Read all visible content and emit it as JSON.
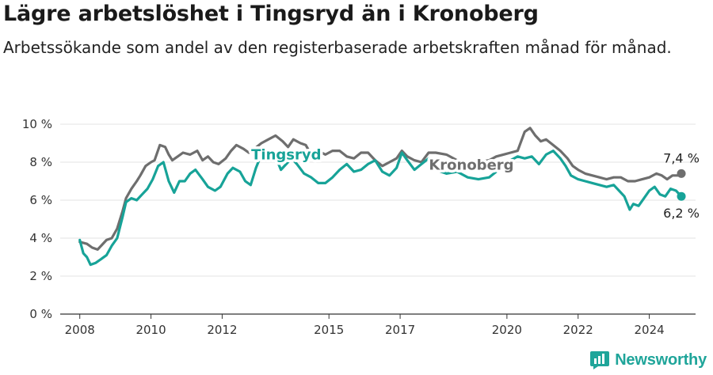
{
  "title": "Lägre arbetslöshet i Tingsryd än i Kronoberg",
  "subtitle": "Arbetssökande som andel av den registerbaserade arbetskraften månad för månad.",
  "brand": {
    "name": "Newsworthy",
    "icon": "newsworthy-logo-icon"
  },
  "colors": {
    "tingsryd": "#17a398",
    "kronoberg": "#6e6e6e",
    "grid": "#e3e3e3",
    "axis": "#333333"
  },
  "chart_data": {
    "type": "line",
    "title": "Lägre arbetslöshet i Tingsryd än i Kronoberg",
    "x_ticks": [
      "2008",
      "2010",
      "2012",
      "2015",
      "2017",
      "2020",
      "2022",
      "2024"
    ],
    "y_ticks": [
      "0 %",
      "2 %",
      "4 %",
      "6 %",
      "8 %",
      "10 %"
    ],
    "ylim": [
      0,
      10
    ],
    "xlim": [
      2007.45,
      2025.3
    ],
    "grid": true,
    "series": [
      {
        "name": "Kronoberg",
        "end_label": "7,4 %",
        "points": [
          [
            2008.0,
            3.8
          ],
          [
            2008.2,
            3.7
          ],
          [
            2008.35,
            3.5
          ],
          [
            2008.5,
            3.4
          ],
          [
            2008.6,
            3.6
          ],
          [
            2008.75,
            3.9
          ],
          [
            2008.9,
            4.0
          ],
          [
            2009.05,
            4.5
          ],
          [
            2009.2,
            5.4
          ],
          [
            2009.3,
            6.1
          ],
          [
            2009.45,
            6.6
          ],
          [
            2009.6,
            7.0
          ],
          [
            2009.7,
            7.3
          ],
          [
            2009.85,
            7.8
          ],
          [
            2010.0,
            8.0
          ],
          [
            2010.1,
            8.1
          ],
          [
            2010.25,
            8.9
          ],
          [
            2010.4,
            8.8
          ],
          [
            2010.5,
            8.4
          ],
          [
            2010.6,
            8.1
          ],
          [
            2010.75,
            8.3
          ],
          [
            2010.9,
            8.5
          ],
          [
            2011.1,
            8.4
          ],
          [
            2011.3,
            8.6
          ],
          [
            2011.45,
            8.1
          ],
          [
            2011.6,
            8.3
          ],
          [
            2011.75,
            8.0
          ],
          [
            2011.9,
            7.9
          ],
          [
            2012.1,
            8.2
          ],
          [
            2012.25,
            8.6
          ],
          [
            2012.4,
            8.9
          ],
          [
            2012.6,
            8.7
          ],
          [
            2012.75,
            8.5
          ],
          [
            2012.9,
            8.7
          ],
          [
            2013.1,
            9.0
          ],
          [
            2013.3,
            9.2
          ],
          [
            2013.5,
            9.4
          ],
          [
            2013.7,
            9.1
          ],
          [
            2013.85,
            8.8
          ],
          [
            2014.0,
            9.2
          ],
          [
            2014.2,
            9.0
          ],
          [
            2014.35,
            8.9
          ],
          [
            2014.5,
            8.4
          ],
          [
            2014.7,
            8.6
          ],
          [
            2014.9,
            8.4
          ],
          [
            2015.1,
            8.6
          ],
          [
            2015.3,
            8.6
          ],
          [
            2015.5,
            8.3
          ],
          [
            2015.7,
            8.2
          ],
          [
            2015.9,
            8.5
          ],
          [
            2016.1,
            8.5
          ],
          [
            2016.3,
            8.1
          ],
          [
            2016.5,
            7.8
          ],
          [
            2016.7,
            8.0
          ],
          [
            2016.9,
            8.2
          ],
          [
            2017.05,
            8.6
          ],
          [
            2017.2,
            8.3
          ],
          [
            2017.4,
            8.1
          ],
          [
            2017.6,
            8.0
          ],
          [
            2017.8,
            8.5
          ],
          [
            2018.0,
            8.5
          ],
          [
            2018.3,
            8.4
          ],
          [
            2018.6,
            8.1
          ],
          [
            2018.9,
            8.0
          ],
          [
            2019.2,
            8.0
          ],
          [
            2019.5,
            8.1
          ],
          [
            2019.7,
            8.3
          ],
          [
            2019.9,
            8.4
          ],
          [
            2020.1,
            8.5
          ],
          [
            2020.3,
            8.6
          ],
          [
            2020.5,
            9.6
          ],
          [
            2020.65,
            9.8
          ],
          [
            2020.8,
            9.4
          ],
          [
            2020.95,
            9.1
          ],
          [
            2021.1,
            9.2
          ],
          [
            2021.3,
            8.9
          ],
          [
            2021.5,
            8.6
          ],
          [
            2021.7,
            8.2
          ],
          [
            2021.85,
            7.8
          ],
          [
            2022.0,
            7.6
          ],
          [
            2022.2,
            7.4
          ],
          [
            2022.4,
            7.3
          ],
          [
            2022.6,
            7.2
          ],
          [
            2022.8,
            7.1
          ],
          [
            2023.0,
            7.2
          ],
          [
            2023.2,
            7.2
          ],
          [
            2023.4,
            7.0
          ],
          [
            2023.6,
            7.0
          ],
          [
            2023.8,
            7.1
          ],
          [
            2024.0,
            7.2
          ],
          [
            2024.2,
            7.4
          ],
          [
            2024.35,
            7.3
          ],
          [
            2024.5,
            7.1
          ],
          [
            2024.65,
            7.3
          ],
          [
            2024.8,
            7.3
          ],
          [
            2024.9,
            7.4
          ]
        ]
      },
      {
        "name": "Tingsryd",
        "end_label": "6,2 %",
        "points": [
          [
            2008.0,
            3.9
          ],
          [
            2008.1,
            3.2
          ],
          [
            2008.2,
            3.0
          ],
          [
            2008.3,
            2.6
          ],
          [
            2008.45,
            2.7
          ],
          [
            2008.6,
            2.9
          ],
          [
            2008.75,
            3.1
          ],
          [
            2008.9,
            3.6
          ],
          [
            2009.05,
            4.0
          ],
          [
            2009.2,
            5.1
          ],
          [
            2009.3,
            5.9
          ],
          [
            2009.45,
            6.1
          ],
          [
            2009.6,
            6.0
          ],
          [
            2009.75,
            6.3
          ],
          [
            2009.9,
            6.6
          ],
          [
            2010.05,
            7.1
          ],
          [
            2010.2,
            7.8
          ],
          [
            2010.35,
            8.0
          ],
          [
            2010.5,
            7.0
          ],
          [
            2010.65,
            6.4
          ],
          [
            2010.8,
            7.0
          ],
          [
            2010.95,
            7.0
          ],
          [
            2011.1,
            7.4
          ],
          [
            2011.25,
            7.6
          ],
          [
            2011.45,
            7.1
          ],
          [
            2011.6,
            6.7
          ],
          [
            2011.8,
            6.5
          ],
          [
            2011.95,
            6.7
          ],
          [
            2012.15,
            7.4
          ],
          [
            2012.3,
            7.7
          ],
          [
            2012.5,
            7.5
          ],
          [
            2012.65,
            7.0
          ],
          [
            2012.8,
            6.8
          ],
          [
            2012.95,
            7.7
          ],
          [
            2013.1,
            8.4
          ],
          [
            2013.3,
            8.6
          ],
          [
            2013.5,
            8.3
          ],
          [
            2013.65,
            7.6
          ],
          [
            2013.8,
            7.9
          ],
          [
            2013.95,
            8.2
          ],
          [
            2014.1,
            7.9
          ],
          [
            2014.3,
            7.4
          ],
          [
            2014.5,
            7.2
          ],
          [
            2014.7,
            6.9
          ],
          [
            2014.9,
            6.9
          ],
          [
            2015.1,
            7.2
          ],
          [
            2015.3,
            7.6
          ],
          [
            2015.5,
            7.9
          ],
          [
            2015.7,
            7.5
          ],
          [
            2015.9,
            7.6
          ],
          [
            2016.1,
            7.9
          ],
          [
            2016.3,
            8.1
          ],
          [
            2016.5,
            7.5
          ],
          [
            2016.7,
            7.3
          ],
          [
            2016.9,
            7.7
          ],
          [
            2017.05,
            8.5
          ],
          [
            2017.2,
            8.1
          ],
          [
            2017.4,
            7.6
          ],
          [
            2017.6,
            7.9
          ],
          [
            2017.8,
            8.2
          ],
          [
            2018.0,
            7.6
          ],
          [
            2018.3,
            7.4
          ],
          [
            2018.6,
            7.5
          ],
          [
            2018.9,
            7.2
          ],
          [
            2019.2,
            7.1
          ],
          [
            2019.5,
            7.2
          ],
          [
            2019.7,
            7.5
          ],
          [
            2019.9,
            7.8
          ],
          [
            2020.1,
            8.1
          ],
          [
            2020.3,
            8.3
          ],
          [
            2020.5,
            8.2
          ],
          [
            2020.7,
            8.3
          ],
          [
            2020.9,
            7.9
          ],
          [
            2021.1,
            8.4
          ],
          [
            2021.3,
            8.6
          ],
          [
            2021.5,
            8.2
          ],
          [
            2021.65,
            7.8
          ],
          [
            2021.8,
            7.3
          ],
          [
            2022.0,
            7.1
          ],
          [
            2022.2,
            7.0
          ],
          [
            2022.4,
            6.9
          ],
          [
            2022.6,
            6.8
          ],
          [
            2022.8,
            6.7
          ],
          [
            2023.0,
            6.8
          ],
          [
            2023.15,
            6.5
          ],
          [
            2023.3,
            6.2
          ],
          [
            2023.45,
            5.5
          ],
          [
            2023.55,
            5.8
          ],
          [
            2023.7,
            5.7
          ],
          [
            2023.85,
            6.1
          ],
          [
            2024.0,
            6.5
          ],
          [
            2024.15,
            6.7
          ],
          [
            2024.3,
            6.3
          ],
          [
            2024.45,
            6.2
          ],
          [
            2024.6,
            6.6
          ],
          [
            2024.75,
            6.5
          ],
          [
            2024.9,
            6.2
          ]
        ]
      }
    ],
    "annotations": [
      {
        "text": "Tingsryd",
        "series": "Tingsryd",
        "x": 2013.8,
        "y": 8.15
      },
      {
        "text": "Kronoberg",
        "series": "Kronoberg",
        "x": 2019.0,
        "y": 7.6
      }
    ]
  }
}
